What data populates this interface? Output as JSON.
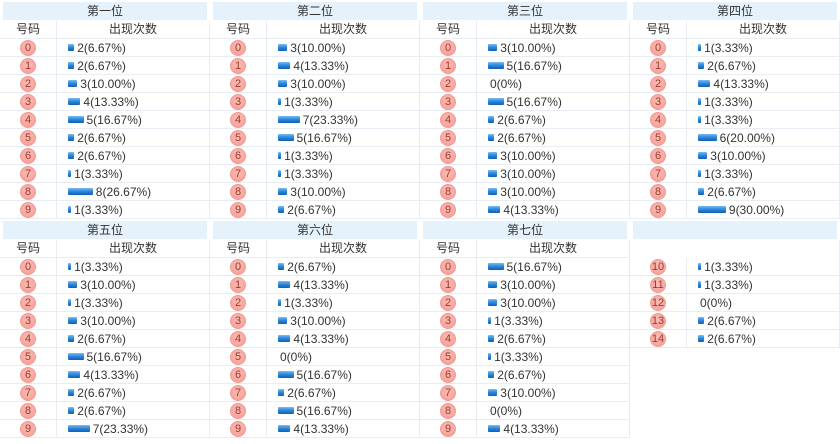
{
  "headers": {
    "number": "号码",
    "count": "出现次数"
  },
  "colors": {
    "band_bg": "#E5F2FB",
    "border": "#E7EDF3",
    "text": "#333333",
    "badge_bg": "#F7A39B",
    "badge_border": "#F19B93",
    "badge_text": "#973B32",
    "bar_top": "#7CBCF2",
    "bar_mid": "#2F8BDE",
    "bar_bottom": "#0D5FB5"
  },
  "chart_data": [
    {
      "type": "bar",
      "title": "第一位",
      "show_header": true,
      "xlabel": "号码",
      "ylabel": "出现次数",
      "categories": [
        "0",
        "1",
        "2",
        "3",
        "4",
        "5",
        "6",
        "7",
        "8",
        "9"
      ],
      "values": [
        2,
        2,
        3,
        4,
        5,
        2,
        2,
        1,
        8,
        1
      ],
      "labels": [
        "2(6.67%)",
        "2(6.67%)",
        "3(10.00%)",
        "4(13.33%)",
        "5(16.67%)",
        "2(6.67%)",
        "2(6.67%)",
        "1(3.33%)",
        "8(26.67%)",
        "1(3.33%)"
      ]
    },
    {
      "type": "bar",
      "title": "第二位",
      "show_header": true,
      "xlabel": "号码",
      "ylabel": "出现次数",
      "categories": [
        "0",
        "1",
        "2",
        "3",
        "4",
        "5",
        "6",
        "7",
        "8",
        "9"
      ],
      "values": [
        3,
        4,
        3,
        1,
        7,
        5,
        1,
        1,
        3,
        2
      ],
      "labels": [
        "3(10.00%)",
        "4(13.33%)",
        "3(10.00%)",
        "1(3.33%)",
        "7(23.33%)",
        "5(16.67%)",
        "1(3.33%)",
        "1(3.33%)",
        "3(10.00%)",
        "2(6.67%)"
      ]
    },
    {
      "type": "bar",
      "title": "第三位",
      "show_header": true,
      "xlabel": "号码",
      "ylabel": "出现次数",
      "categories": [
        "0",
        "1",
        "2",
        "3",
        "4",
        "5",
        "6",
        "7",
        "8",
        "9"
      ],
      "values": [
        3,
        5,
        0,
        5,
        2,
        2,
        3,
        3,
        3,
        4
      ],
      "labels": [
        "3(10.00%)",
        "5(16.67%)",
        "0(0%)",
        "5(16.67%)",
        "2(6.67%)",
        "2(6.67%)",
        "3(10.00%)",
        "3(10.00%)",
        "3(10.00%)",
        "4(13.33%)"
      ]
    },
    {
      "type": "bar",
      "title": "第四位",
      "show_header": true,
      "xlabel": "号码",
      "ylabel": "出现次数",
      "categories": [
        "0",
        "1",
        "2",
        "3",
        "4",
        "5",
        "6",
        "7",
        "8",
        "9"
      ],
      "values": [
        1,
        2,
        4,
        1,
        1,
        6,
        3,
        1,
        2,
        9
      ],
      "labels": [
        "1(3.33%)",
        "2(6.67%)",
        "4(13.33%)",
        "1(3.33%)",
        "1(3.33%)",
        "6(20.00%)",
        "3(10.00%)",
        "1(3.33%)",
        "2(6.67%)",
        "9(30.00%)"
      ]
    },
    {
      "type": "bar",
      "title": "第五位",
      "show_header": true,
      "xlabel": "号码",
      "ylabel": "出现次数",
      "categories": [
        "0",
        "1",
        "2",
        "3",
        "4",
        "5",
        "6",
        "7",
        "8",
        "9"
      ],
      "values": [
        1,
        3,
        1,
        3,
        2,
        5,
        4,
        2,
        2,
        7
      ],
      "labels": [
        "1(3.33%)",
        "3(10.00%)",
        "1(3.33%)",
        "3(10.00%)",
        "2(6.67%)",
        "5(16.67%)",
        "4(13.33%)",
        "2(6.67%)",
        "2(6.67%)",
        "7(23.33%)"
      ]
    },
    {
      "type": "bar",
      "title": "第六位",
      "show_header": true,
      "xlabel": "号码",
      "ylabel": "出现次数",
      "categories": [
        "0",
        "1",
        "2",
        "3",
        "4",
        "5",
        "6",
        "7",
        "8",
        "9"
      ],
      "values": [
        2,
        4,
        1,
        3,
        4,
        0,
        5,
        2,
        5,
        4
      ],
      "labels": [
        "2(6.67%)",
        "4(13.33%)",
        "1(3.33%)",
        "3(10.00%)",
        "4(13.33%)",
        "0(0%)",
        "5(16.67%)",
        "2(6.67%)",
        "5(16.67%)",
        "4(13.33%)"
      ]
    },
    {
      "type": "bar",
      "title": "第七位",
      "show_header": true,
      "xlabel": "号码",
      "ylabel": "出现次数",
      "categories": [
        "0",
        "1",
        "2",
        "3",
        "4",
        "5",
        "6",
        "7",
        "8",
        "9"
      ],
      "values": [
        5,
        3,
        3,
        1,
        2,
        1,
        2,
        3,
        0,
        4
      ],
      "labels": [
        "5(16.67%)",
        "3(10.00%)",
        "3(10.00%)",
        "1(3.33%)",
        "2(6.67%)",
        "1(3.33%)",
        "2(6.67%)",
        "3(10.00%)",
        "0(0%)",
        "4(13.33%)"
      ]
    },
    {
      "type": "bar",
      "title": "",
      "show_header": false,
      "xlabel": "号码",
      "ylabel": "出现次数",
      "categories": [
        "10",
        "11",
        "12",
        "13",
        "14"
      ],
      "values": [
        1,
        1,
        0,
        2,
        2
      ],
      "labels": [
        "1(3.33%)",
        "1(3.33%)",
        "0(0%)",
        "2(6.67%)",
        "2(6.67%)"
      ]
    }
  ]
}
